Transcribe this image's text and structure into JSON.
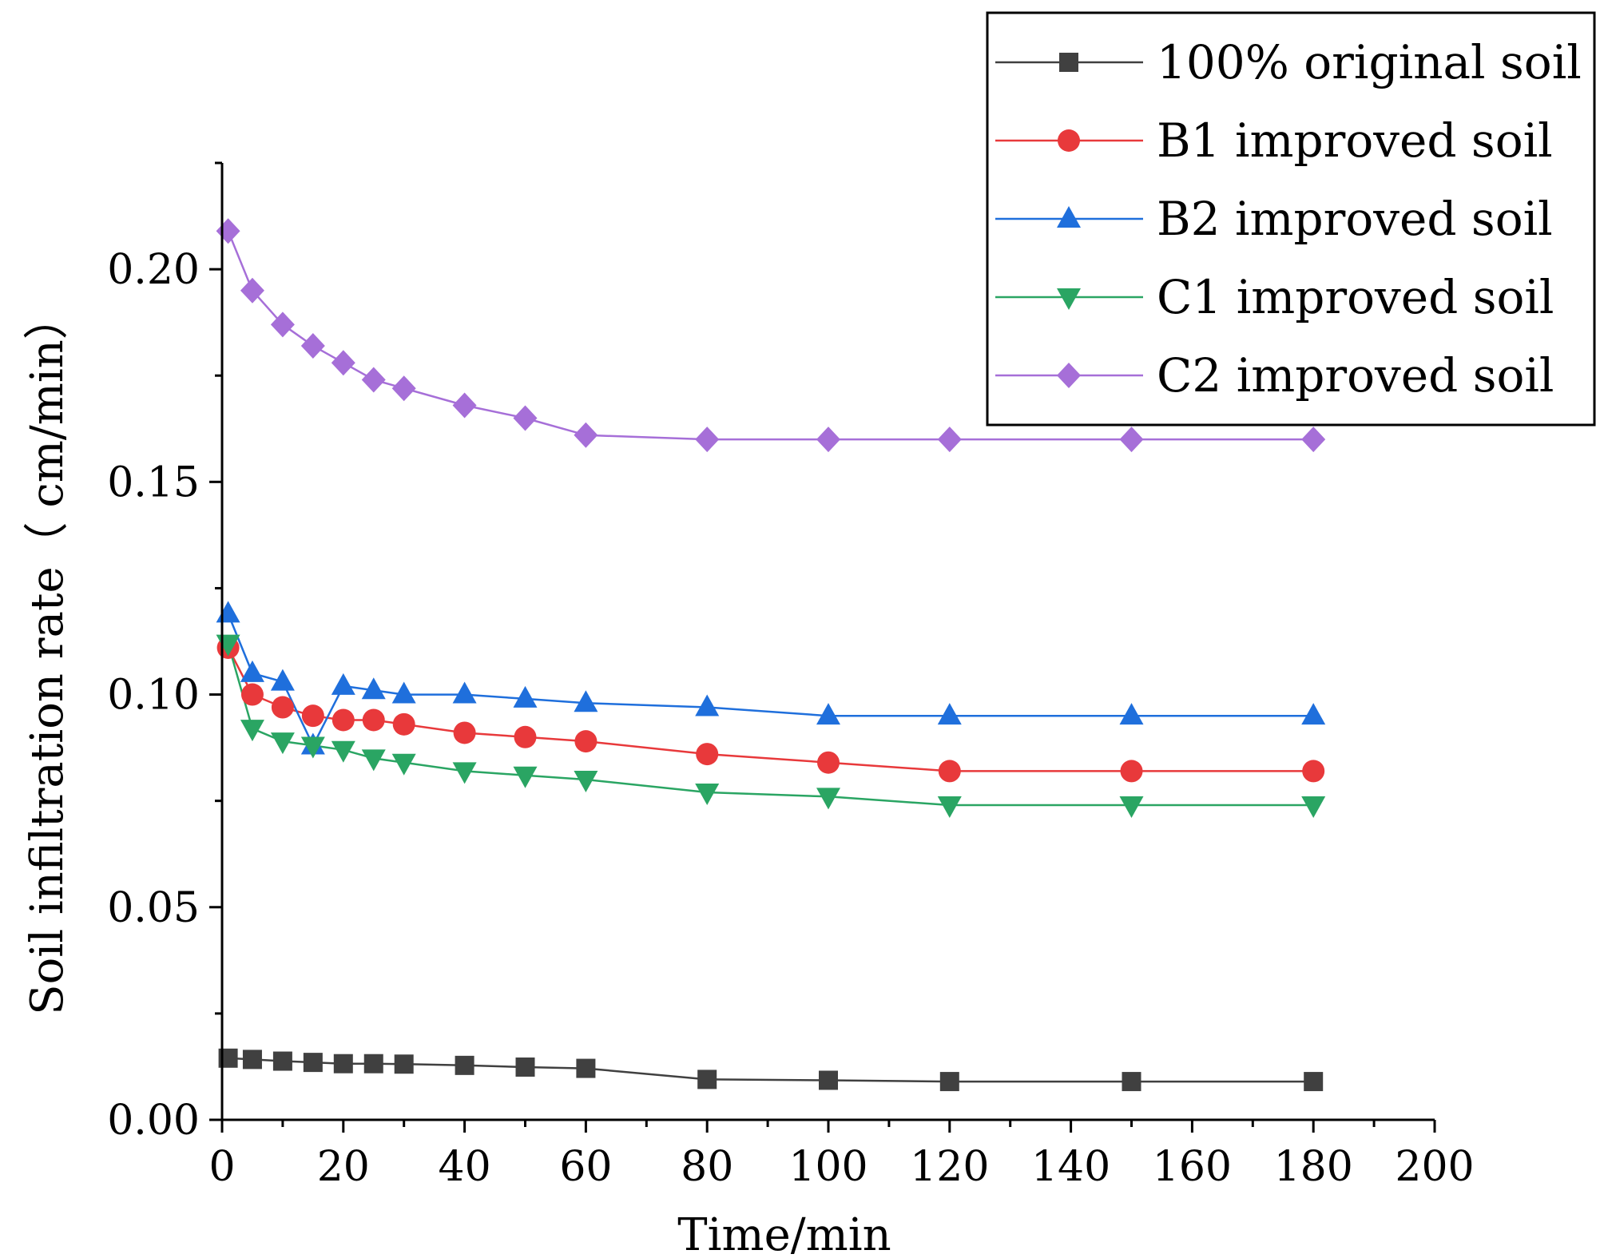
{
  "chart_data": {
    "type": "line",
    "title": "",
    "xlabel": "Time/min",
    "ylabel": "Soil infiltration rate（ cm/min）",
    "xlim": [
      0,
      200
    ],
    "ylim": [
      0,
      0.225
    ],
    "x_ticks": [
      0,
      20,
      40,
      60,
      80,
      100,
      120,
      140,
      160,
      180,
      200
    ],
    "x_tick_labels": [
      "0",
      "20",
      "40",
      "60",
      "80",
      "100",
      "120",
      "140",
      "160",
      "180",
      "200"
    ],
    "y_ticks": [
      0,
      0.05,
      0.1,
      0.15,
      0.2
    ],
    "y_tick_labels": [
      "0.00",
      "0.05",
      "0.10",
      "0.15",
      "0.20"
    ],
    "grid": false,
    "legend_position": "top-right",
    "x": [
      1,
      5,
      10,
      15,
      20,
      25,
      30,
      40,
      50,
      60,
      80,
      100,
      120,
      150,
      180
    ],
    "series": [
      {
        "name": "100% original soil",
        "color": "#404040",
        "marker": "square",
        "values": [
          0.0145,
          0.0142,
          0.0138,
          0.0135,
          0.0132,
          0.0132,
          0.0131,
          0.0128,
          0.0124,
          0.0121,
          0.0095,
          0.0093,
          0.009,
          0.009,
          0.009
        ]
      },
      {
        "name": "B1 improved soil",
        "color": "#e8393b",
        "marker": "circle",
        "values": [
          0.111,
          0.1,
          0.097,
          0.095,
          0.094,
          0.094,
          0.093,
          0.091,
          0.09,
          0.089,
          0.086,
          0.084,
          0.082,
          0.082,
          0.082
        ]
      },
      {
        "name": "B2 improved soil",
        "color": "#1f6fdc",
        "marker": "triangle-up",
        "values": [
          0.119,
          0.105,
          0.103,
          0.088,
          0.102,
          0.101,
          0.1,
          0.1,
          0.099,
          0.098,
          0.097,
          0.095,
          0.095,
          0.095,
          0.095
        ]
      },
      {
        "name": "C1 improved soil",
        "color": "#2aa563",
        "marker": "triangle-down",
        "values": [
          0.112,
          0.092,
          0.089,
          0.088,
          0.087,
          0.085,
          0.084,
          0.082,
          0.081,
          0.08,
          0.077,
          0.076,
          0.074,
          0.074,
          0.074
        ]
      },
      {
        "name": "C2 improved soil",
        "color": "#a66fd8",
        "marker": "diamond",
        "values": [
          0.209,
          0.195,
          0.187,
          0.182,
          0.178,
          0.174,
          0.172,
          0.168,
          0.165,
          0.161,
          0.16,
          0.16,
          0.16,
          0.16,
          0.16
        ]
      }
    ]
  }
}
